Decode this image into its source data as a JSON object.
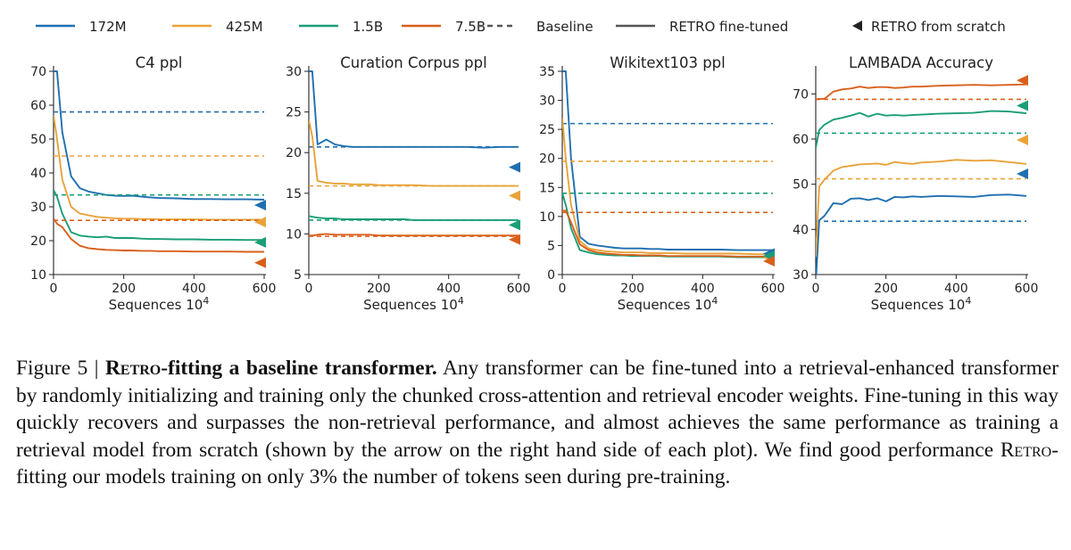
{
  "legend": [
    {
      "label": "172M",
      "style": "line",
      "color": "#1f6fb0"
    },
    {
      "label": "425M",
      "style": "line",
      "color": "#e8a33a"
    },
    {
      "label": "1.5B",
      "style": "line",
      "color": "#1a9e77"
    },
    {
      "label": "7.5B",
      "style": "line",
      "color": "#d9601c"
    },
    {
      "label": "Baseline",
      "style": "dashed",
      "color": "#555555"
    },
    {
      "label": "RETRO fine-tuned",
      "style": "solid",
      "color": "#555555"
    },
    {
      "label": "RETRO from scratch",
      "style": "triangle",
      "color": "#222222"
    }
  ],
  "colors": {
    "172M": "#1f6fb0",
    "425M": "#e8a33a",
    "1.5B": "#1a9e77",
    "7.5B": "#d9601c"
  },
  "chart_data": [
    {
      "type": "line",
      "title": "C4 ppl",
      "xlabel": "Sequences 10^4",
      "xlim": [
        0,
        600
      ],
      "ylim": [
        10,
        70
      ],
      "xticks": [
        0,
        200,
        400,
        600
      ],
      "yticks": [
        10,
        20,
        30,
        40,
        50,
        60,
        70
      ],
      "x": [
        0,
        10,
        25,
        50,
        75,
        100,
        125,
        150,
        175,
        200,
        225,
        250,
        275,
        300,
        350,
        400,
        450,
        500,
        550,
        600
      ],
      "series": [
        {
          "name": "172M",
          "values": [
            70,
            70,
            52,
            39,
            35.5,
            34.5,
            34,
            33.5,
            33.3,
            33.2,
            33.3,
            33,
            32.8,
            32.6,
            32.5,
            32.3,
            32.3,
            32.2,
            32.2,
            32.1
          ],
          "baseline": 58,
          "scratch": 30.5
        },
        {
          "name": "425M",
          "values": [
            57,
            50,
            38,
            30,
            28,
            27.5,
            27,
            26.8,
            26.6,
            26.5,
            26.5,
            26.4,
            26.4,
            26.3,
            26.3,
            26.3,
            26.2,
            26.2,
            26.2,
            26.2
          ],
          "baseline": 45,
          "scratch": 25.5
        },
        {
          "name": "1.5B",
          "values": [
            35,
            33,
            28,
            22.5,
            21.5,
            21.2,
            21,
            21.2,
            20.8,
            20.8,
            20.8,
            20.6,
            20.5,
            20.5,
            20.4,
            20.4,
            20.3,
            20.3,
            20.2,
            20.2
          ],
          "baseline": 33.5,
          "scratch": 19.5
        },
        {
          "name": "7.5B",
          "values": [
            26.5,
            25,
            24,
            20.5,
            18.5,
            17.8,
            17.5,
            17.3,
            17.2,
            17.1,
            17.1,
            17,
            17,
            16.9,
            16.9,
            16.8,
            16.8,
            16.8,
            16.7,
            16.7
          ],
          "baseline": 26,
          "scratch": 13.5
        }
      ]
    },
    {
      "type": "line",
      "title": "Curation Corpus ppl",
      "xlabel": "Sequences 10^4",
      "xlim": [
        0,
        600
      ],
      "ylim": [
        5,
        30
      ],
      "xticks": [
        0,
        200,
        400,
        600
      ],
      "yticks": [
        5,
        10,
        15,
        20,
        25,
        30
      ],
      "x": [
        0,
        10,
        25,
        50,
        75,
        100,
        125,
        150,
        175,
        200,
        225,
        250,
        275,
        300,
        350,
        400,
        450,
        500,
        550,
        600
      ],
      "series": [
        {
          "name": "172M",
          "values": [
            30,
            30,
            21,
            21.6,
            21,
            20.8,
            20.7,
            20.7,
            20.7,
            20.7,
            20.7,
            20.7,
            20.7,
            20.7,
            20.7,
            20.7,
            20.7,
            20.6,
            20.7,
            20.7
          ],
          "baseline": 20.7,
          "scratch": 18.2
        },
        {
          "name": "425M",
          "values": [
            24,
            22,
            16.5,
            16.3,
            16.2,
            16.2,
            16.1,
            16.1,
            16.1,
            16,
            16,
            16,
            16,
            16,
            15.9,
            15.9,
            15.9,
            15.9,
            15.9,
            15.9
          ],
          "baseline": 15.9,
          "scratch": 14.7
        },
        {
          "name": "1.5B",
          "values": [
            12.2,
            12.1,
            12,
            11.9,
            11.9,
            11.8,
            11.8,
            11.8,
            11.8,
            11.8,
            11.8,
            11.8,
            11.8,
            11.7,
            11.7,
            11.7,
            11.7,
            11.7,
            11.7,
            11.7
          ],
          "baseline": 11.7,
          "scratch": 11.1
        },
        {
          "name": "7.5B",
          "values": [
            9.8,
            9.8,
            9.9,
            10,
            9.9,
            9.9,
            9.9,
            9.9,
            9.9,
            9.8,
            9.8,
            9.8,
            9.8,
            9.8,
            9.8,
            9.8,
            9.8,
            9.8,
            9.8,
            9.8
          ],
          "baseline": 9.7,
          "scratch": 9.3
        }
      ]
    },
    {
      "type": "line",
      "title": "Wikitext103 ppl",
      "xlabel": "Sequences 10^4",
      "xlim": [
        0,
        600
      ],
      "ylim": [
        0,
        35
      ],
      "xticks": [
        0,
        200,
        400,
        600
      ],
      "yticks": [
        0,
        5,
        10,
        15,
        20,
        25,
        30,
        35
      ],
      "x": [
        0,
        10,
        25,
        50,
        75,
        100,
        125,
        150,
        175,
        200,
        225,
        250,
        275,
        300,
        350,
        400,
        450,
        500,
        550,
        600
      ],
      "series": [
        {
          "name": "172M",
          "values": [
            35,
            35,
            20,
            6.5,
            5.3,
            5,
            4.8,
            4.6,
            4.5,
            4.5,
            4.5,
            4.4,
            4.4,
            4.3,
            4.3,
            4.3,
            4.3,
            4.2,
            4.2,
            4.2
          ],
          "baseline": 26,
          "scratch": 3.6
        },
        {
          "name": "425M",
          "values": [
            27,
            20,
            12,
            5.8,
            4.5,
            4.2,
            4,
            3.9,
            3.8,
            3.8,
            3.8,
            3.7,
            3.7,
            3.7,
            3.6,
            3.6,
            3.6,
            3.6,
            3.5,
            3.5
          ],
          "baseline": 19.5,
          "scratch": 2.9
        },
        {
          "name": "1.5B",
          "values": [
            14,
            12,
            8,
            4.2,
            3.8,
            3.5,
            3.4,
            3.3,
            3.3,
            3.2,
            3.2,
            3.2,
            3.2,
            3.1,
            3.1,
            3.1,
            3.1,
            3,
            3,
            3
          ],
          "baseline": 14,
          "scratch": 3.2
        },
        {
          "name": "7.5B",
          "values": [
            11,
            11,
            9,
            5.2,
            4.2,
            3.8,
            3.6,
            3.5,
            3.4,
            3.4,
            3.3,
            3.3,
            3.3,
            3.2,
            3.2,
            3.2,
            3.2,
            3.1,
            3.1,
            3.1
          ],
          "baseline": 10.7,
          "scratch": 2.3
        }
      ]
    },
    {
      "type": "line",
      "title": "LAMBADA Accuracy",
      "xlabel": "Sequences 10^4",
      "xlim": [
        0,
        600
      ],
      "ylim": [
        30,
        75
      ],
      "xticks": [
        0,
        200,
        400,
        600
      ],
      "yticks": [
        30,
        40,
        50,
        60,
        70
      ],
      "x": [
        0,
        10,
        25,
        50,
        75,
        100,
        125,
        150,
        175,
        200,
        225,
        250,
        275,
        300,
        350,
        400,
        450,
        500,
        550,
        600
      ],
      "series": [
        {
          "name": "172M",
          "values": [
            28,
            42,
            43,
            45.8,
            45.6,
            46.8,
            46.9,
            46.5,
            46.9,
            46.2,
            47.2,
            47.1,
            47.3,
            47.2,
            47.4,
            47.3,
            47.2,
            47.6,
            47.7,
            47.4
          ],
          "baseline": 41.8,
          "scratch": 52.3
        },
        {
          "name": "425M",
          "values": [
            34,
            49.5,
            51,
            53,
            53.8,
            54.1,
            54.4,
            54.5,
            54.6,
            54.3,
            54.9,
            54.7,
            54.5,
            54.8,
            55,
            55.4,
            55.2,
            55.3,
            54.9,
            54.5
          ],
          "baseline": 51.2,
          "scratch": 59.8
        },
        {
          "name": "1.5B",
          "values": [
            58,
            62,
            63.2,
            64.3,
            64.7,
            65.2,
            65.8,
            65,
            65.6,
            65.2,
            65.3,
            65.2,
            65.3,
            65.4,
            65.6,
            65.7,
            65.8,
            66.2,
            66.1,
            65.7
          ],
          "baseline": 61.3,
          "scratch": 67.4
        },
        {
          "name": "7.5B",
          "values": [
            68.8,
            68.9,
            68.9,
            70.5,
            71,
            71.2,
            71.6,
            71.3,
            71.5,
            71.5,
            71.3,
            71.4,
            71.6,
            71.6,
            71.8,
            71.9,
            72,
            71.9,
            72,
            72.1
          ],
          "baseline": 68.8,
          "scratch": 73
        }
      ]
    }
  ],
  "caption": {
    "label": "Figure 5 | ",
    "title_sc": "Retro",
    "title_rest": "-fitting a baseline transformer.",
    "body_1": " Any transformer can be fine-tuned into a retrieval-enhanced transformer by randomly initializing and training only the chunked cross-attention and retrieval encoder weights. Fine-tuning in this way quickly recovers and surpasses the non-retrieval performance, and almost achieves the same performance as training a retrieval model from scratch (shown by the arrow on the right hand side of each plot). We find good performance ",
    "body_sc": "Retro",
    "body_2": "-fitting our models training on only 3% the number of tokens seen during pre-training."
  }
}
